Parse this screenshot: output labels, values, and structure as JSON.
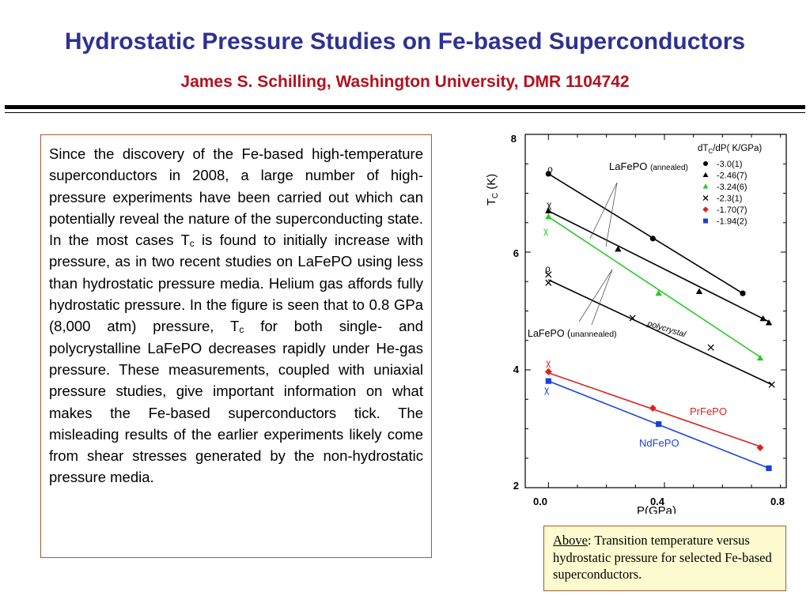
{
  "header": {
    "title": "Hydrostatic Pressure Studies on Fe-based Superconductors",
    "subtitle": "James S. Schilling, Washington University, DMR 1104742"
  },
  "body_text": {
    "p1": "Since the discovery of the Fe-based high-temperature superconductors in 2008, a  large number of high-pressure experiments have been carried out which can potentially reveal the nature of the superconducting state. In the most cases T",
    "sub1": "c",
    "p2": " is found to initially increase with pressure, as in two recent studies on LaFePO using less than hydrostatic pressure media. Helium gas affords fully hydrostatic pressure. In the figure is seen that to 0.8 GPa (8,000 atm) pressure, T",
    "sub2": "c",
    "p3": " for both single- and polycrystalline LaFePO decreases rapidly under He-gas pressure. These measurements, coupled with uniaxial pressure studies, give important information on what makes the Fe-based superconductors tick. The misleading results of the earlier experiments likely come from shear stresses generated by the non-hydrostatic pressure media."
  },
  "caption": {
    "head": "Above",
    "text": ":  Transition temperature versus hydrostatic pressure for selected Fe-based superconductors."
  },
  "chart_data": {
    "type": "scatter",
    "xlabel": "P(GPa)",
    "ylabel_main": "T",
    "ylabel_sub": "C",
    "ylabel_unit": " (K)",
    "xlim": [
      -0.08,
      0.82
    ],
    "ylim": [
      2,
      8
    ],
    "xticks": [
      0.0,
      0.4,
      0.8
    ],
    "xtick_labels": [
      "0.0",
      "0.4",
      "0.8"
    ],
    "yticks": [
      2,
      4,
      6,
      8
    ],
    "ytick_labels": [
      "2",
      "4",
      "6",
      "8"
    ],
    "legend": {
      "position": "top-right",
      "title_a": "dT",
      "title_sub": "C",
      "title_b": "/dP( K/GPa)",
      "entries": [
        "-3.0(1)",
        "-2.46(7)",
        "-3.24(6)",
        "-2.3(1)",
        "-1.70(7)",
        "-1.94(2)"
      ]
    },
    "series": [
      {
        "name": "-3.0(1)",
        "marker": "circle",
        "color": "#000000",
        "x": [
          0.0,
          0.36,
          0.67
        ],
        "y": [
          7.33,
          6.23,
          5.3
        ],
        "fit": [
          [
            0.0,
            7.33
          ],
          [
            0.67,
            5.3
          ]
        ]
      },
      {
        "name": "-2.46(7)",
        "marker": "triangle",
        "color": "#000000",
        "x": [
          0.0,
          0.24,
          0.52,
          0.74,
          0.76
        ],
        "y": [
          6.7,
          6.05,
          5.33,
          4.87,
          4.8
        ],
        "fit": [
          [
            0.0,
            6.7
          ],
          [
            0.76,
            4.82
          ]
        ]
      },
      {
        "name": "-3.24(6)",
        "marker": "triangle",
        "color": "#22cc22",
        "x": [
          0.0,
          0.38,
          0.73
        ],
        "y": [
          6.6,
          5.3,
          4.2
        ],
        "fit": [
          [
            0.0,
            6.6
          ],
          [
            0.73,
            4.22
          ]
        ]
      },
      {
        "name": "-2.3(1)",
        "marker": "cross",
        "color": "#000000",
        "x": [
          0.0,
          0.0,
          0.29,
          0.56,
          0.77
        ],
        "y": [
          5.62,
          5.48,
          4.88,
          4.38,
          3.75
        ],
        "fit": [
          [
            0.0,
            5.53
          ],
          [
            0.77,
            3.75
          ]
        ]
      },
      {
        "name": "-1.70(7)",
        "marker": "diamond",
        "color": "#e02020",
        "x": [
          0.0,
          0.36,
          0.73
        ],
        "y": [
          3.97,
          3.35,
          2.68
        ],
        "fit": [
          [
            0.0,
            3.95
          ],
          [
            0.73,
            2.7
          ]
        ]
      },
      {
        "name": "-1.94(2)",
        "marker": "square",
        "color": "#1a3fe0",
        "x": [
          0.0,
          0.38,
          0.76
        ],
        "y": [
          3.81,
          3.08,
          2.33
        ],
        "fit": [
          [
            0.0,
            3.81
          ],
          [
            0.76,
            2.33
          ]
        ]
      }
    ],
    "annotations": {
      "lafepo_annealed": "LaFePO (annealed)",
      "lafepo_unannealed": "LaFePO (unannealed)",
      "polycrystal": "polycrystal",
      "rho_1": "ρ",
      "rho_2": "ρ",
      "chi_1": "χ",
      "chi_2": "χ",
      "chi_3": "χ",
      "chi_4": "χ",
      "prfepo": "PrFePO",
      "ndfepo": "NdFePO"
    }
  },
  "colors": {
    "title": "#2e3192",
    "subtitle": "#b4111e",
    "box_border": "#a05a3a",
    "caption_bg": "#fffbd0",
    "prfepo_label": "#e02020",
    "ndfepo_label": "#1a3fe0"
  }
}
